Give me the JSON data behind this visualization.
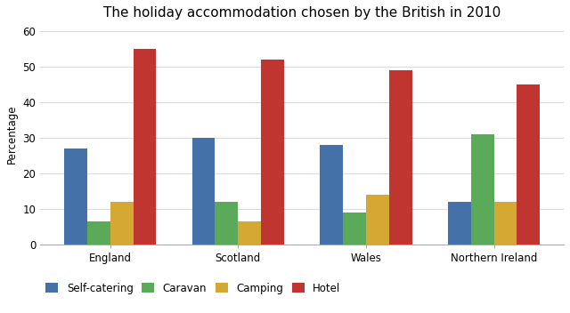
{
  "title": "The holiday accommodation chosen by the British in 2010",
  "categories": [
    "England",
    "Scotland",
    "Wales",
    "Northern Ireland"
  ],
  "series": {
    "Self-catering": [
      27,
      30,
      28,
      12
    ],
    "Caravan": [
      6.5,
      12,
      9,
      31
    ],
    "Camping": [
      12,
      6.5,
      14,
      12
    ],
    "Hotel": [
      55,
      52,
      49,
      45
    ]
  },
  "colors": {
    "Self-catering": "#4472a8",
    "Caravan": "#5aaa5a",
    "Camping": "#d4a832",
    "Hotel": "#c03530"
  },
  "ylabel": "Percentage",
  "ylim": [
    0,
    62
  ],
  "yticks": [
    0,
    10,
    20,
    30,
    40,
    50,
    60
  ],
  "background_color": "#ffffff",
  "grid_color": "#dddddd",
  "bar_width": 0.18,
  "title_fontsize": 11,
  "label_fontsize": 8.5,
  "tick_fontsize": 8.5
}
